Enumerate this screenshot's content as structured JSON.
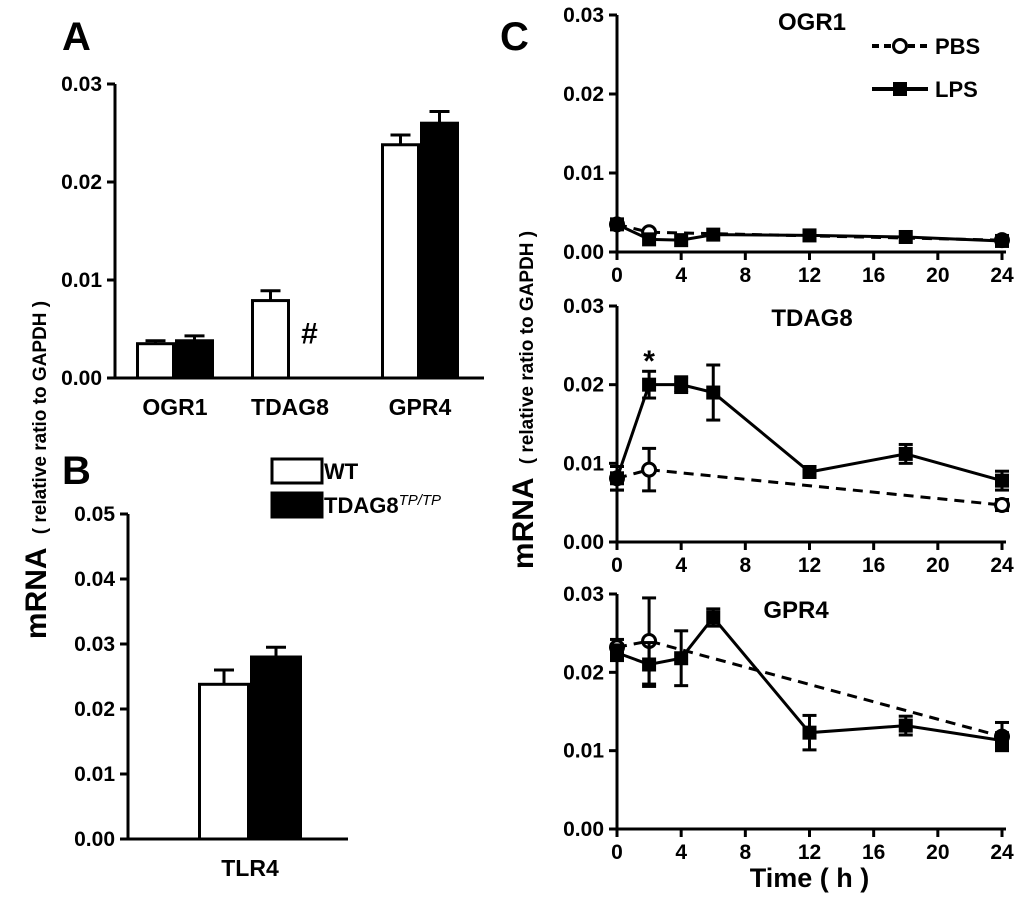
{
  "colors": {
    "wt": "#ffffff",
    "mutant": "#000000",
    "line": "#000000"
  },
  "y_axis_label": {
    "main": "mRNA",
    "sub": "( relative ratio to GAPDH )"
  },
  "legend_ab": {
    "wt": "WT",
    "mutant_base": "TDAG8",
    "mutant_sup": "TP/TP"
  },
  "legend_c": {
    "pbs": "PBS",
    "lps": "LPS"
  },
  "chart_data": [
    {
      "id": "A",
      "panel_label": "A",
      "type": "bar",
      "categories": [
        "OGR1",
        "TDAG8",
        "GPR4"
      ],
      "ylim": [
        0,
        0.03
      ],
      "yticks": [
        "0.00",
        "0.01",
        "0.02",
        "0.03"
      ],
      "ytick_values": [
        0,
        0.01,
        0.02,
        0.03
      ],
      "series": [
        {
          "name": "WT",
          "values": [
            0.0035,
            0.0079,
            0.0238
          ],
          "errors": [
            0.0003,
            0.001,
            0.001
          ]
        },
        {
          "name": "TDAG8 TP/TP",
          "values": [
            0.0038,
            0.0,
            0.026
          ],
          "errors": [
            0.0005,
            0.0,
            0.0012
          ]
        }
      ],
      "annotation": "#"
    },
    {
      "id": "B",
      "panel_label": "B",
      "type": "bar",
      "categories": [
        "TLR4"
      ],
      "ylim": [
        0,
        0.05
      ],
      "yticks": [
        "0.00",
        "0.01",
        "0.02",
        "0.03",
        "0.04",
        "0.05"
      ],
      "ytick_values": [
        0,
        0.01,
        0.02,
        0.03,
        0.04,
        0.05
      ],
      "series": [
        {
          "name": "WT",
          "values": [
            0.0238
          ],
          "errors": [
            0.0022
          ]
        },
        {
          "name": "TDAG8 TP/TP",
          "values": [
            0.028
          ],
          "errors": [
            0.0015
          ]
        }
      ]
    },
    {
      "id": "C1",
      "panel_label": "C",
      "type": "line",
      "title": "OGR1",
      "ylim": [
        0,
        0.03
      ],
      "yticks": [
        "0.00",
        "0.01",
        "0.02",
        "0.03"
      ],
      "ytick_values": [
        0,
        0.01,
        0.02,
        0.03
      ],
      "xticks": [
        "0",
        "4",
        "8",
        "12",
        "16",
        "20",
        "24"
      ],
      "xtick_values": [
        0,
        4,
        8,
        12,
        16,
        20,
        24
      ],
      "xlim": [
        0,
        24
      ],
      "series": [
        {
          "name": "PBS",
          "x": [
            0,
            2,
            24
          ],
          "y": [
            0.0035,
            0.0025,
            0.0015
          ],
          "errors": [
            0,
            0,
            0
          ]
        },
        {
          "name": "LPS",
          "x": [
            0,
            2,
            4,
            6,
            12,
            18,
            24
          ],
          "y": [
            0.0035,
            0.0016,
            0.0015,
            0.0022,
            0.0021,
            0.0019,
            0.0014
          ],
          "errors": [
            0,
            0,
            0,
            0,
            0,
            0,
            0
          ]
        }
      ]
    },
    {
      "id": "C2",
      "type": "line",
      "title": "TDAG8",
      "ylim": [
        0,
        0.03
      ],
      "yticks": [
        "0.00",
        "0.01",
        "0.02",
        "0.03"
      ],
      "ytick_values": [
        0,
        0.01,
        0.02,
        0.03
      ],
      "xticks": [
        "0",
        "4",
        "8",
        "12",
        "16",
        "20",
        "24"
      ],
      "xtick_values": [
        0,
        4,
        8,
        12,
        16,
        20,
        24
      ],
      "xlim": [
        0,
        24
      ],
      "annotation": "*",
      "annotation_x": 2,
      "series": [
        {
          "name": "PBS",
          "x": [
            0,
            2,
            24
          ],
          "y": [
            0.0081,
            0.0092,
            0.0047
          ],
          "errors": [
            0.0015,
            0.0027,
            0.0007
          ]
        },
        {
          "name": "LPS",
          "x": [
            0,
            2,
            4,
            6,
            12,
            18,
            24
          ],
          "y": [
            0.0081,
            0.02,
            0.02,
            0.019,
            0.0089,
            0.0112,
            0.0078
          ],
          "errors": [
            0.0015,
            0.0017,
            0.001,
            0.0035,
            0.0005,
            0.0012,
            0.0012
          ]
        }
      ]
    },
    {
      "id": "C3",
      "type": "line",
      "title": "GPR4",
      "xlabel": "Time ( h )",
      "ylim": [
        0,
        0.03
      ],
      "yticks": [
        "0.00",
        "0.01",
        "0.02",
        "0.03"
      ],
      "ytick_values": [
        0,
        0.01,
        0.02,
        0.03
      ],
      "xticks": [
        "0",
        "4",
        "8",
        "12",
        "16",
        "20",
        "24"
      ],
      "xtick_values": [
        0,
        4,
        8,
        12,
        16,
        20,
        24
      ],
      "xlim": [
        0,
        24
      ],
      "series": [
        {
          "name": "PBS",
          "x": [
            0,
            2,
            24
          ],
          "y": [
            0.0232,
            0.024,
            0.0118
          ],
          "errors": [
            0.001,
            0.0055,
            0.0018
          ]
        },
        {
          "name": "LPS",
          "x": [
            0,
            2,
            4,
            6,
            12,
            18,
            24
          ],
          "y": [
            0.0225,
            0.021,
            0.0218,
            0.027,
            0.0123,
            0.0132,
            0.0113
          ],
          "errors": [
            0.001,
            0.0028,
            0.0035,
            0.0011,
            0.0022,
            0.0012,
            0.001
          ]
        }
      ]
    }
  ]
}
